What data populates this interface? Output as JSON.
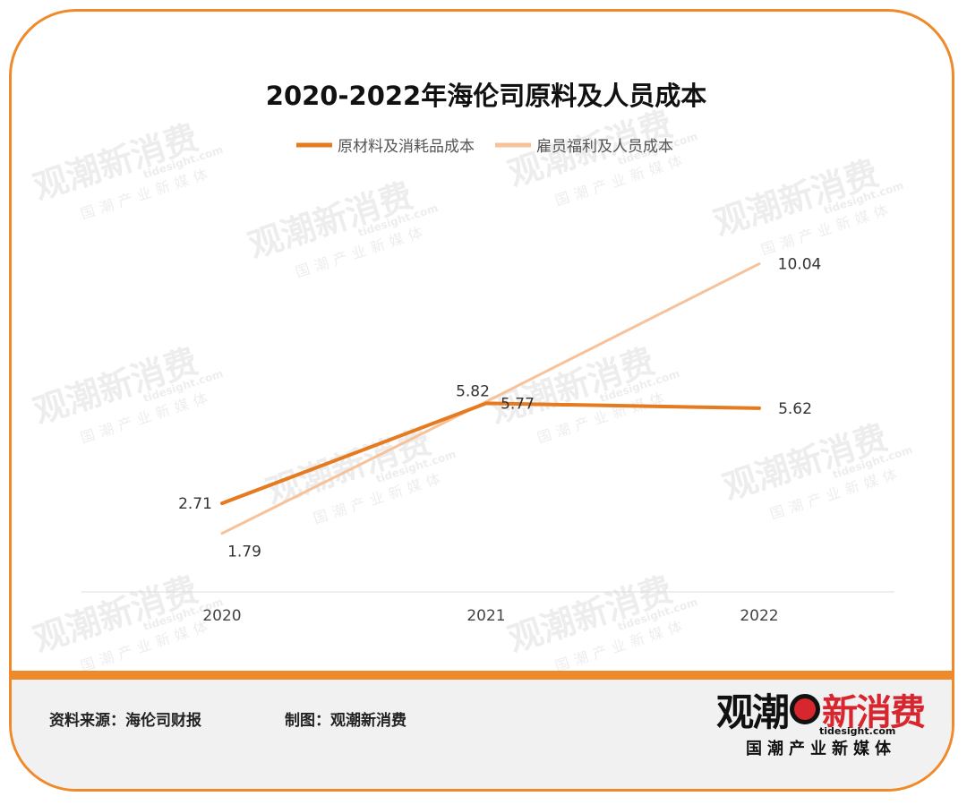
{
  "title": "2020-2022年海伦司原料及人员成本",
  "chart_data": {
    "type": "line",
    "title": "2020-2022年海伦司原料及人员成本",
    "x": [
      "2020",
      "2021",
      "2022"
    ],
    "series": [
      {
        "name": "原材料及消耗品成本",
        "values": [
          2.71,
          5.77,
          5.62
        ],
        "labels": [
          "2.71",
          "5.77",
          "5.62"
        ],
        "color": "#e57a1f"
      },
      {
        "name": "雇员福利及人员成本",
        "values": [
          1.79,
          5.82,
          10.04
        ],
        "labels": [
          "1.79",
          "5.82",
          "10.04"
        ],
        "color": "#f7c29a"
      }
    ],
    "legend": "top-center",
    "grid": false
  },
  "footer": {
    "source": "资料来源：海伦司财报",
    "maker": "制图：观潮新消费"
  },
  "logo": {
    "left": "观潮",
    "right": "新消费",
    "url": "tidesight.com",
    "sub": "国潮产业新媒体"
  },
  "watermark": {
    "main": "观潮新消费",
    "url": "tidesight.com",
    "sub": "国潮产业新媒体"
  }
}
